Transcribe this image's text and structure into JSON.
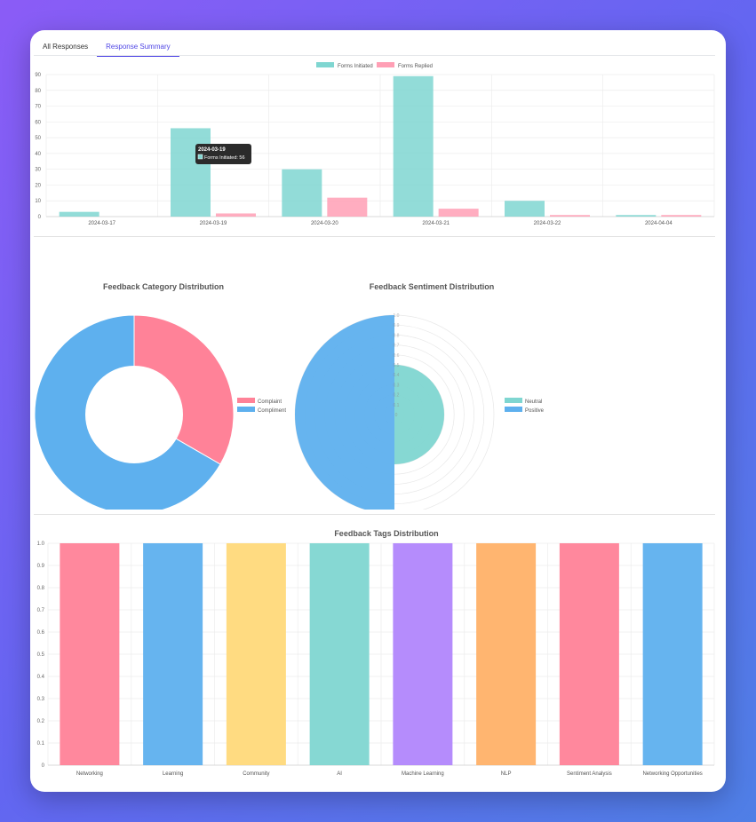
{
  "tabs": [
    {
      "label": "All Responses",
      "active": false
    },
    {
      "label": "Response Summary",
      "active": true
    }
  ],
  "colors": {
    "teal": "#7fd6d1",
    "pink": "#ff9fb5",
    "blue": "#5eb0ee",
    "rose": "#ff8298",
    "yellow": "#ffd97a",
    "purple": "#b186fc",
    "orange": "#ffb168"
  },
  "chart_data": [
    {
      "type": "bar",
      "categories": [
        "2024-03-17",
        "2024-03-19",
        "2024-03-20",
        "2024-03-21",
        "2024-03-22",
        "2024-04-04"
      ],
      "series": [
        {
          "name": "Forms Initiated",
          "values": [
            3,
            56,
            30,
            89,
            10,
            1
          ]
        },
        {
          "name": "Forms Replied",
          "values": [
            0,
            2,
            12,
            5,
            1,
            1
          ]
        }
      ],
      "ylim": [
        0,
        90
      ],
      "yticks": [
        "0",
        "10",
        "20",
        "30",
        "40",
        "50",
        "60",
        "70",
        "80",
        "90"
      ],
      "legend": "top-center",
      "tooltip": {
        "title": "2024-03-19",
        "label": "Forms Initiated: 56"
      }
    },
    {
      "type": "pie",
      "title": "Feedback Category Distribution",
      "labels": [
        "Complaint",
        "Compliment"
      ],
      "values": [
        1,
        2
      ],
      "donut": true,
      "legend": "right"
    },
    {
      "type": "pie",
      "title": "Feedback Sentiment Distribution",
      "labels": [
        "Neutral",
        "Positive"
      ],
      "values": [
        0.5,
        1
      ],
      "polar": true,
      "rticks": [
        "0",
        "0.1",
        "0.2",
        "0.3",
        "0.4",
        "0.5",
        "0.6",
        "0.7",
        "0.8",
        "0.9",
        "1.0"
      ],
      "legend": "right"
    },
    {
      "type": "bar",
      "title": "Feedback Tags Distribution",
      "categories": [
        "Networking",
        "Learning",
        "Community",
        "AI",
        "Machine Learning",
        "NLP",
        "Sentiment Analysis",
        "Networking Opportunities"
      ],
      "values": [
        1,
        1,
        1,
        1,
        1,
        1,
        1,
        1
      ],
      "ylim": [
        0,
        1
      ],
      "yticks": [
        "0",
        "0.1",
        "0.2",
        "0.3",
        "0.4",
        "0.5",
        "0.6",
        "0.7",
        "0.8",
        "0.9",
        "1.0"
      ]
    }
  ]
}
